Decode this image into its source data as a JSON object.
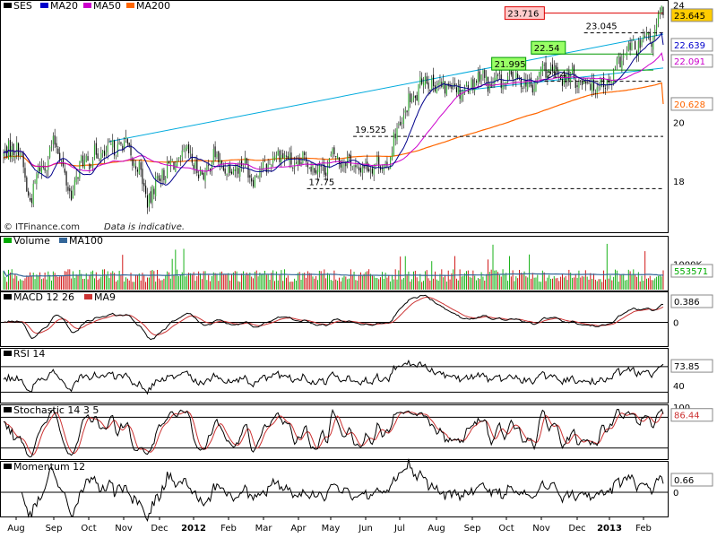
{
  "chart_data": {
    "type": "candlestick",
    "symbol": "SES",
    "watermark": "© ITFinance.com",
    "disclaimer": "Data is indicative.",
    "x_tick_labels": [
      "Aug",
      "Sep",
      "Oct",
      "Nov",
      "Dec",
      "2012",
      "Feb",
      "Mar",
      "Apr",
      "May",
      "Jun",
      "Jul",
      "Aug",
      "Sep",
      "Oct",
      "Nov",
      "Dec",
      "2013",
      "Feb"
    ],
    "bold_tick_labels": [
      "2012",
      "2013"
    ],
    "colors": {
      "up": "#2ea82e",
      "down": "#000000",
      "ma20": "#00008b",
      "ma50": "#cc00cc",
      "ma200": "#ff6600",
      "trendline": "#00aadd",
      "volume_up": "#00aa00",
      "volume_down": "#cc0000",
      "ma100_volume": "#336699",
      "macd": "#000000",
      "macd_signal": "#cc3333"
    },
    "panels": [
      {
        "id": "price",
        "legend": [
          {
            "label": "SES",
            "color": "#000000"
          },
          {
            "label": "MA20",
            "color": "#0000cc"
          },
          {
            "label": "MA50",
            "color": "#cc00cc"
          },
          {
            "label": "MA200",
            "color": "#ff6600"
          }
        ],
        "y_range": [
          16.3,
          24.1
        ],
        "y_ticks": [
          24,
          20,
          18
        ],
        "last_values": [
          {
            "label": "23.645",
            "value": 23.645,
            "bg": "#ffcc00",
            "fg": "#000000"
          },
          {
            "label": "22.639",
            "value": 22.639,
            "bg": "#ffffff",
            "fg": "#0000cc"
          },
          {
            "label": "22.091",
            "value": 22.091,
            "bg": "#ffffff",
            "fg": "#cc00cc"
          },
          {
            "label": "20.628",
            "value": 20.628,
            "bg": "#ffffff",
            "fg": "#ff6600"
          }
        ],
        "levels": [
          {
            "label": "23.716",
            "value": 23.716,
            "style": "red-box"
          },
          {
            "label": "23.045",
            "value": 23.045,
            "style": "dashed"
          },
          {
            "label": "22.54",
            "value": 22.54,
            "style": "green-box"
          },
          {
            "label": "21.995",
            "value": 21.995,
            "style": "green-box"
          },
          {
            "label": "21.4",
            "value": 21.4,
            "style": "dashed"
          },
          {
            "label": "19.525",
            "value": 19.525,
            "style": "dashed"
          },
          {
            "label": "17.75",
            "value": 17.75,
            "style": "dashed"
          }
        ],
        "trendlines": [
          {
            "from": [
              0.16,
              19.35
            ],
            "to": [
              1.0,
              23.0
            ]
          },
          {
            "from": [
              0.69,
              21.07
            ],
            "to": [
              1.0,
              21.85
            ]
          }
        ]
      },
      {
        "id": "volume",
        "legend": [
          {
            "label": "Volume",
            "color": "#00aa00"
          },
          {
            "label": "MA100",
            "color": "#336699"
          }
        ],
        "y_ticks": [
          {
            "label": "1000K",
            "value": 1000
          }
        ],
        "last_values": [
          {
            "label": "553571",
            "value": 553.571,
            "bg": "#ffffff",
            "fg": "#00aa00"
          }
        ]
      },
      {
        "id": "macd",
        "legend": [
          {
            "label": "MACD 12 26",
            "color": "#000000"
          },
          {
            "label": "MA9",
            "color": "#cc3333"
          }
        ],
        "y_ticks": [
          {
            "label": "0",
            "value": 0
          }
        ],
        "last_values": [
          {
            "label": "0.386",
            "value": 0.386,
            "bg": "#ffffff",
            "fg": "#000000"
          }
        ]
      },
      {
        "id": "rsi",
        "legend": [
          {
            "label": "RSI 14",
            "color": "#000000"
          }
        ],
        "y_ticks": [
          {
            "label": "70",
            "value": 70
          },
          {
            "label": "40",
            "value": 40
          }
        ],
        "last_values": [
          {
            "label": "73.85",
            "value": 73.85,
            "bg": "#ffffff",
            "fg": "#000000"
          }
        ]
      },
      {
        "id": "stochastic",
        "legend": [
          {
            "label": "Stochastic 14 3 5",
            "color": "#000000"
          }
        ],
        "y_ticks": [
          {
            "label": "100",
            "value": 100
          }
        ],
        "last_values": [
          {
            "label": "86.44",
            "value": 86.44,
            "bg": "#ffffff",
            "fg": "#cc3333"
          }
        ]
      },
      {
        "id": "momentum",
        "legend": [
          {
            "label": "Momentum 12",
            "color": "#000000"
          }
        ],
        "y_ticks": [
          {
            "label": "0",
            "value": 0
          }
        ],
        "last_values": [
          {
            "label": "0.66",
            "value": 0.66,
            "bg": "#ffffff",
            "fg": "#000000"
          }
        ]
      }
    ],
    "price_anchors": [
      [
        0.0,
        18.9
      ],
      [
        0.02,
        19.2
      ],
      [
        0.04,
        17.5
      ],
      [
        0.06,
        18.6
      ],
      [
        0.08,
        19.3
      ],
      [
        0.1,
        17.6
      ],
      [
        0.12,
        18.6
      ],
      [
        0.14,
        18.9
      ],
      [
        0.16,
        19.0
      ],
      [
        0.18,
        19.3
      ],
      [
        0.2,
        18.6
      ],
      [
        0.22,
        17.4
      ],
      [
        0.24,
        18.3
      ],
      [
        0.26,
        18.6
      ],
      [
        0.28,
        18.9
      ],
      [
        0.3,
        18.2
      ],
      [
        0.32,
        18.8
      ],
      [
        0.34,
        18.4
      ],
      [
        0.36,
        18.6
      ],
      [
        0.38,
        18.2
      ],
      [
        0.4,
        18.6
      ],
      [
        0.42,
        19.0
      ],
      [
        0.44,
        18.5
      ],
      [
        0.46,
        18.7
      ],
      [
        0.48,
        18.4
      ],
      [
        0.5,
        18.8
      ],
      [
        0.52,
        18.7
      ],
      [
        0.54,
        18.4
      ],
      [
        0.56,
        18.6
      ],
      [
        0.58,
        18.5
      ],
      [
        0.6,
        19.9
      ],
      [
        0.62,
        20.8
      ],
      [
        0.64,
        21.5
      ],
      [
        0.66,
        21.2
      ],
      [
        0.68,
        21.3
      ],
      [
        0.7,
        21.1
      ],
      [
        0.72,
        21.6
      ],
      [
        0.74,
        21.3
      ],
      [
        0.76,
        21.4
      ],
      [
        0.78,
        21.5
      ],
      [
        0.8,
        21.2
      ],
      [
        0.82,
        21.8
      ],
      [
        0.84,
        21.6
      ],
      [
        0.86,
        21.5
      ],
      [
        0.88,
        21.4
      ],
      [
        0.9,
        21.3
      ],
      [
        0.92,
        21.4
      ],
      [
        0.94,
        22.3
      ],
      [
        0.96,
        22.6
      ],
      [
        0.98,
        22.8
      ],
      [
        1.0,
        23.7
      ]
    ]
  }
}
